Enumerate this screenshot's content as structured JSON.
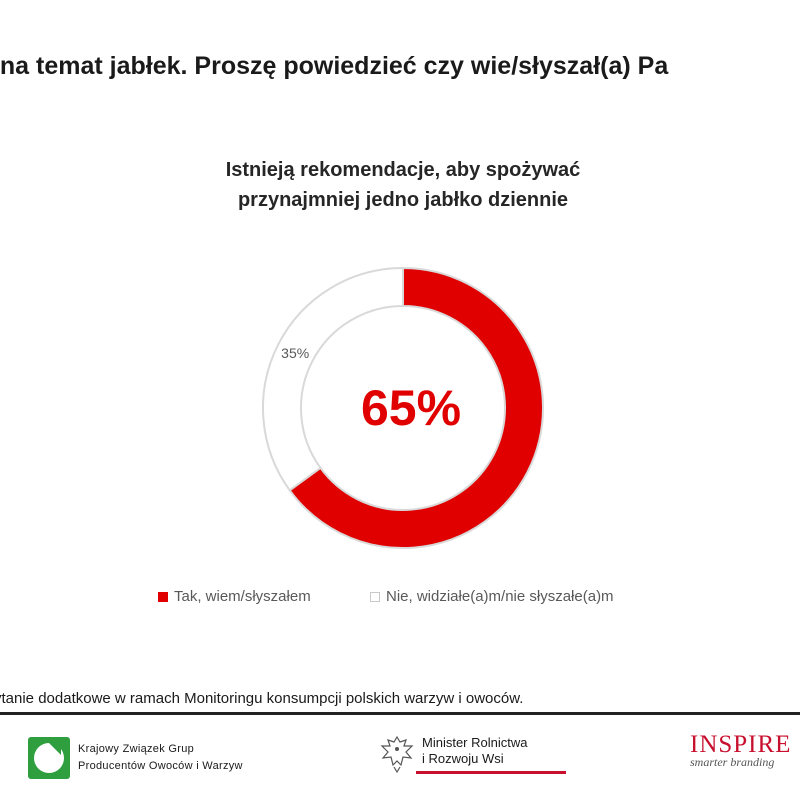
{
  "page": {
    "heading": "i na temat jabłek. Proszę powiedzieć czy wie/słyszał(a) Pa",
    "footnote": "ytanie dodatkowe w ramach Monitoringu konsumpcji polskich warzyw i owoców."
  },
  "chart_data": {
    "type": "pie",
    "title_lines": [
      "Istnieją rekomendacje, aby spożywać",
      "przynajmniej jedno jabłko dziennie"
    ],
    "center_label": "65%",
    "categories": [
      "Tak, wiem/słyszałem",
      "Nie, widziałe(a)m/nie słyszałe(a)m"
    ],
    "values": [
      65,
      35
    ],
    "data_labels": [
      "",
      "35%"
    ],
    "colors": [
      "#e00000",
      "#ffffff"
    ],
    "legend_position": "bottom"
  },
  "logos": {
    "kzgp": {
      "line1": "Krajowy Związek Grup",
      "line2": "Producentów Owoców i Warzyw"
    },
    "minister": {
      "line1": "Minister Rolnictwa",
      "line2": "i Rozwoju Wsi"
    },
    "inspire": {
      "name": "INSPIRE",
      "tagline": "smarter branding"
    }
  },
  "colors": {
    "accent": "#e00000",
    "brand_red": "#c8102e"
  }
}
